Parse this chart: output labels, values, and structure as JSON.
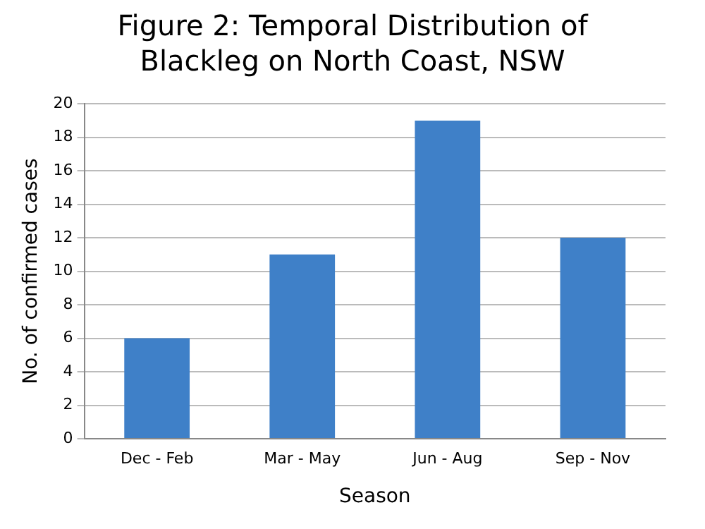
{
  "chart_data": {
    "type": "bar",
    "title": "Figure 2: Temporal Distribution of Blackleg on North Coast, NSW",
    "categories": [
      "Dec - Feb",
      "Mar - May",
      "Jun - Aug",
      "Sep - Nov"
    ],
    "values": [
      6,
      11,
      19,
      12
    ],
    "color": "#3f80c8",
    "xlabel": "Season",
    "ylabel": "No. of confirmed cases",
    "ylim": [
      0,
      20
    ],
    "yticks": [
      0,
      2,
      4,
      6,
      8,
      10,
      12,
      14,
      16,
      18,
      20
    ],
    "grid": "y",
    "legend": false
  }
}
